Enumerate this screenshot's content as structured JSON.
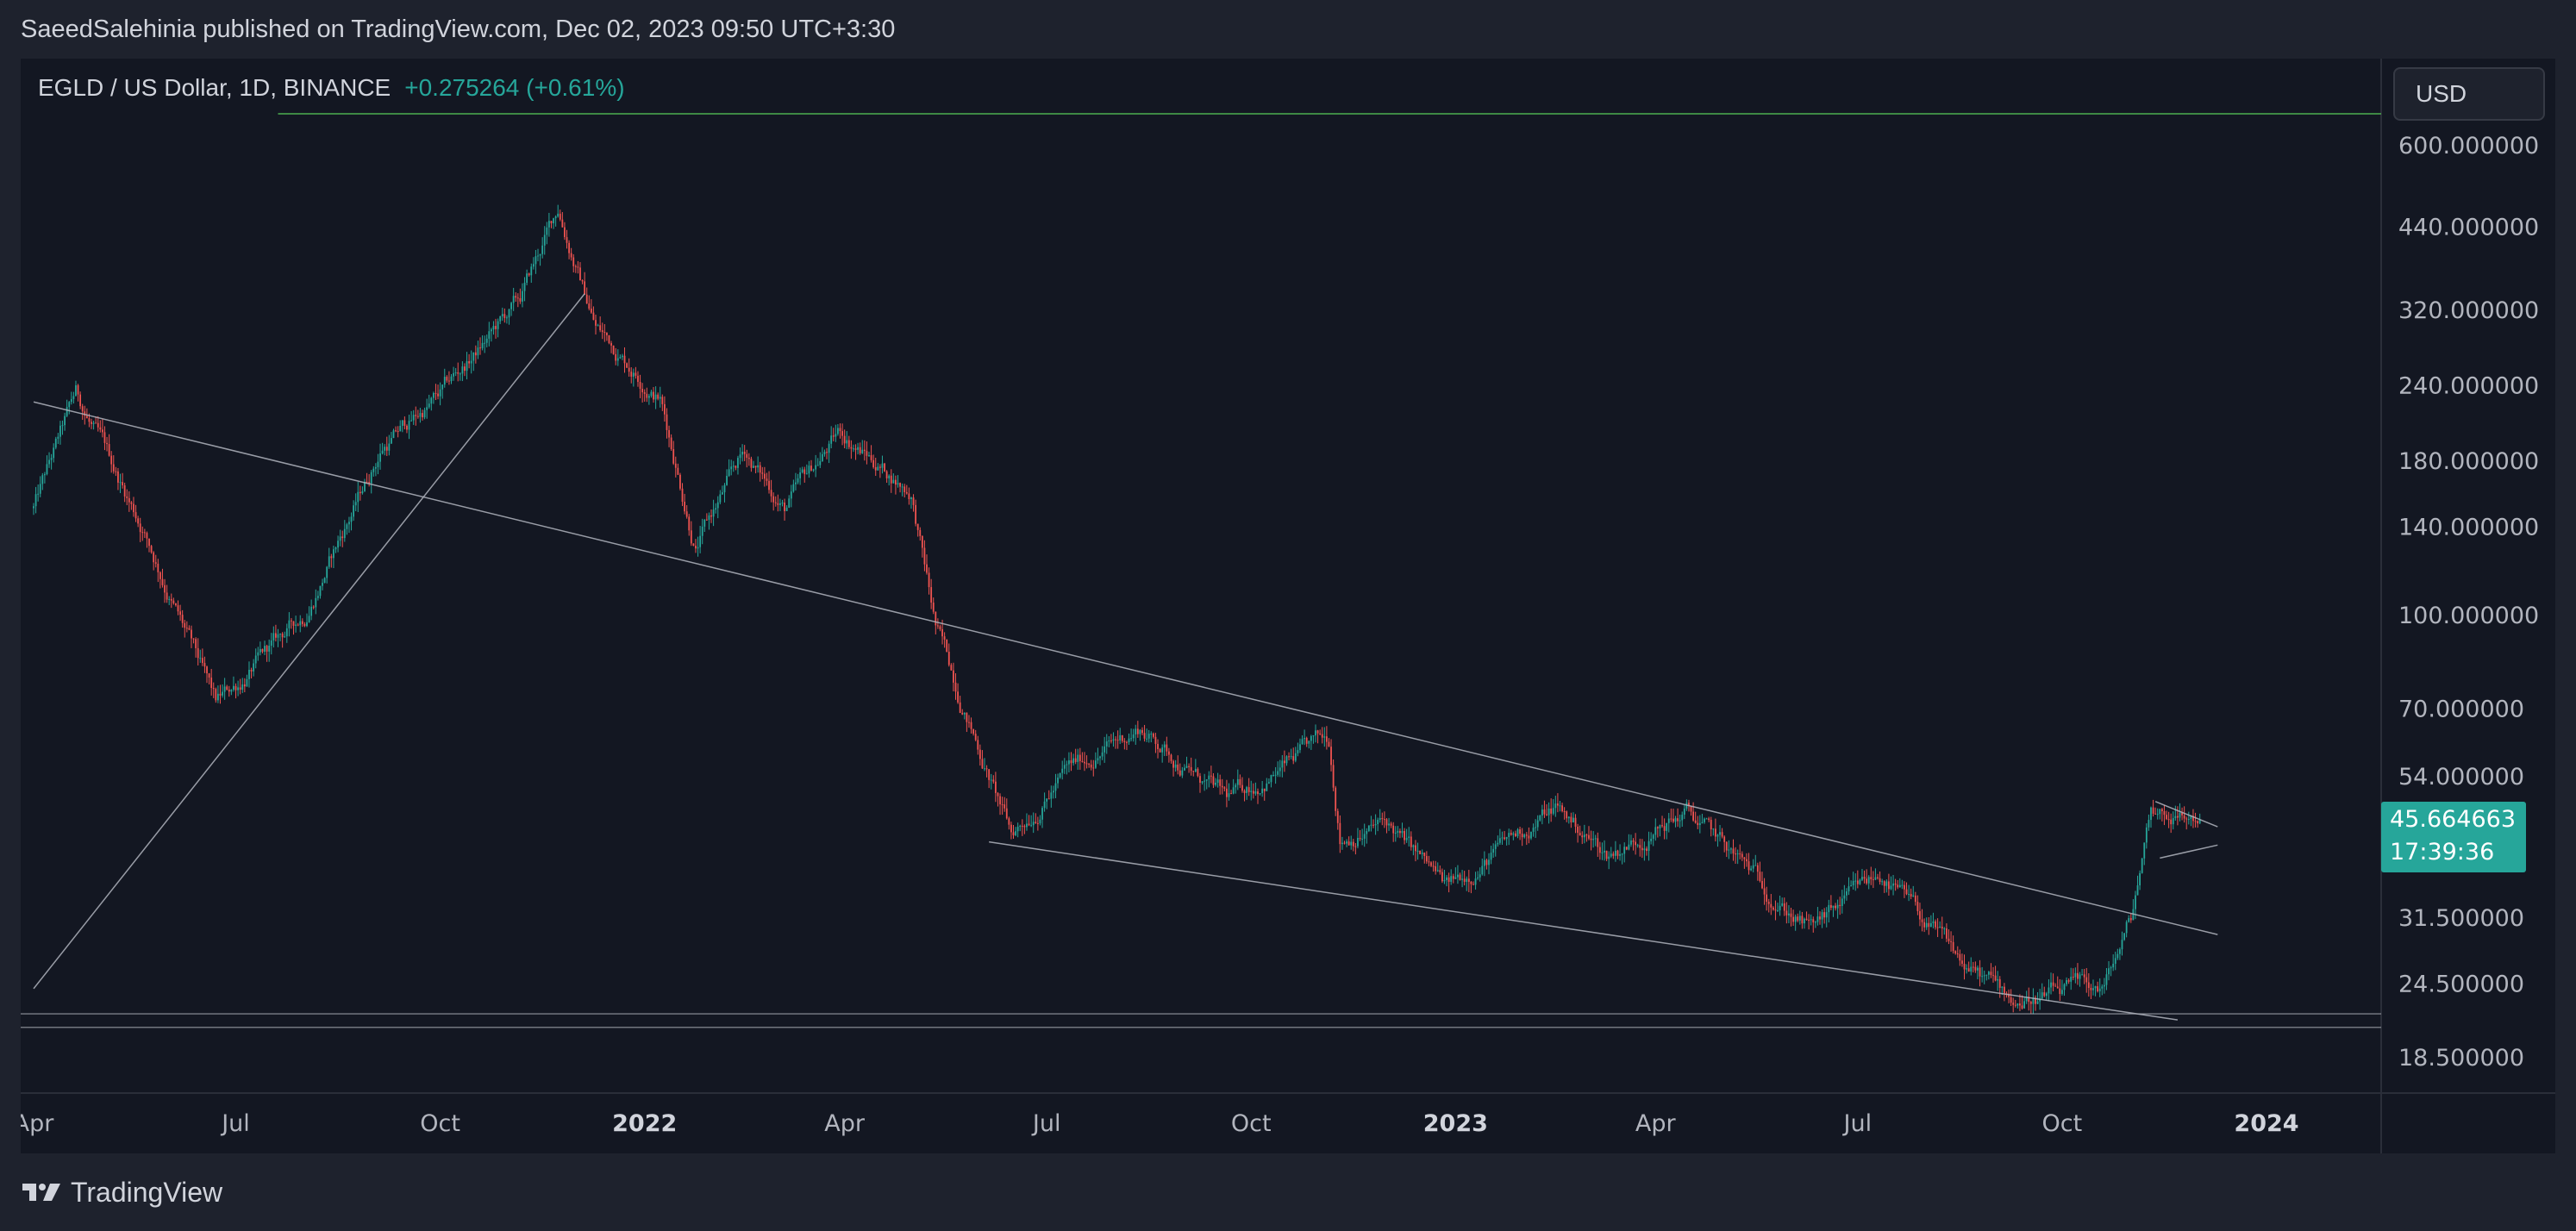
{
  "header": {
    "publisher_line": "SaeedSalehinia published on TradingView.com, Dec 02, 2023 09:50 UTC+3:30"
  },
  "legend": {
    "symbol": "EGLD / US Dollar, 1D, BINANCE",
    "change": "+0.275264 (+0.61%)"
  },
  "currency_button": "USD",
  "last_price": {
    "value": "45.664663",
    "countdown": "17:39:36"
  },
  "footer": {
    "brand": "TradingView",
    "logo_icon": "tradingview-logo-icon"
  },
  "colors": {
    "up": "#26a69a",
    "down": "#ef5350",
    "background": "#131722",
    "frame": "#1e222d",
    "trendline": "#b2b5be",
    "green_line": "#4caf50"
  },
  "chart_data": {
    "type": "candlestick",
    "title": "EGLD / US Dollar, 1D, BINANCE",
    "scale": "log",
    "ylim": [
      16,
      700
    ],
    "y_tick_labels": [
      "600.000000",
      "440.000000",
      "320.000000",
      "240.000000",
      "180.000000",
      "140.000000",
      "100.000000",
      "70.000000",
      "54.000000",
      "31.500000",
      "24.500000",
      "18.500000"
    ],
    "x_tick_labels": [
      "Apr",
      "Jul",
      "Oct",
      "2022",
      "Apr",
      "Jul",
      "Oct",
      "2023",
      "Apr",
      "Jul",
      "Oct",
      "2024"
    ],
    "x_tick_dates": [
      "2021-04-01",
      "2021-07-01",
      "2021-10-01",
      "2022-01-01",
      "2022-04-01",
      "2022-07-01",
      "2022-10-01",
      "2023-01-01",
      "2023-04-01",
      "2023-07-01",
      "2023-10-01",
      "2024-01-01"
    ],
    "approximate_price_path": [
      {
        "date": "2021-04-01",
        "price": 150
      },
      {
        "date": "2021-04-20",
        "price": 230
      },
      {
        "date": "2021-05-20",
        "price": 140
      },
      {
        "date": "2021-06-22",
        "price": 70
      },
      {
        "date": "2021-08-01",
        "price": 100
      },
      {
        "date": "2021-09-05",
        "price": 190
      },
      {
        "date": "2021-10-01",
        "price": 230
      },
      {
        "date": "2021-11-06",
        "price": 330
      },
      {
        "date": "2021-11-23",
        "price": 470
      },
      {
        "date": "2021-12-10",
        "price": 300
      },
      {
        "date": "2022-01-08",
        "price": 230
      },
      {
        "date": "2022-01-24",
        "price": 130
      },
      {
        "date": "2022-02-15",
        "price": 185
      },
      {
        "date": "2022-03-05",
        "price": 150
      },
      {
        "date": "2022-03-30",
        "price": 200
      },
      {
        "date": "2022-05-01",
        "price": 160
      },
      {
        "date": "2022-05-12",
        "price": 95
      },
      {
        "date": "2022-06-15",
        "price": 43
      },
      {
        "date": "2022-07-10",
        "price": 55
      },
      {
        "date": "2022-08-12",
        "price": 65
      },
      {
        "date": "2022-09-20",
        "price": 49
      },
      {
        "date": "2022-11-05",
        "price": 62
      },
      {
        "date": "2022-11-10",
        "price": 43
      },
      {
        "date": "2022-12-01",
        "price": 45
      },
      {
        "date": "2022-12-28",
        "price": 35
      },
      {
        "date": "2023-02-15",
        "price": 48
      },
      {
        "date": "2023-03-10",
        "price": 40
      },
      {
        "date": "2023-04-15",
        "price": 47
      },
      {
        "date": "2023-06-10",
        "price": 30
      },
      {
        "date": "2023-07-12",
        "price": 37
      },
      {
        "date": "2023-08-18",
        "price": 26
      },
      {
        "date": "2023-09-10",
        "price": 23
      },
      {
        "date": "2023-10-20",
        "price": 24
      },
      {
        "date": "2023-11-01",
        "price": 31
      },
      {
        "date": "2023-11-10",
        "price": 48
      },
      {
        "date": "2023-12-02",
        "price": 45.66
      }
    ],
    "last_price": 45.664663
  }
}
